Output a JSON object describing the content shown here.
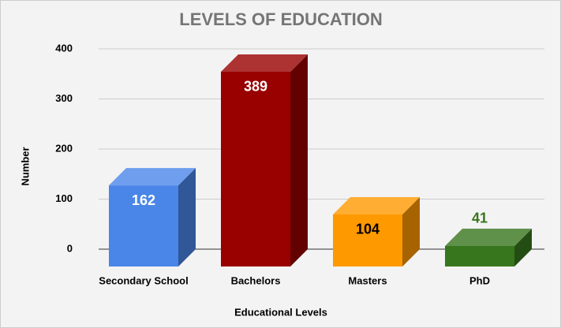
{
  "chart_data": {
    "type": "bar3d",
    "title": "LEVELS OF EDUCATION",
    "x_label": "Educational Levels",
    "y_label": "Number",
    "categories": [
      "Secondary School",
      "Bachelors",
      "Masters",
      "PhD"
    ],
    "values": [
      162,
      389,
      104,
      41
    ],
    "colors": [
      "#4a86e8",
      "#990000",
      "#ff9900",
      "#38761d"
    ],
    "label_colors": [
      "#ffffff",
      "#ffffff",
      "#000000",
      "#38761d"
    ],
    "ylim": [
      0,
      400
    ],
    "yticks": [
      0,
      100,
      200,
      300,
      400
    ],
    "grid": true
  }
}
